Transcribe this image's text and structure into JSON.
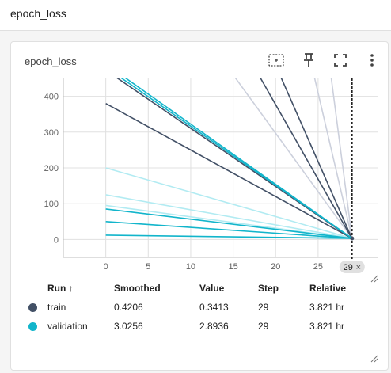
{
  "header": {
    "title": "epoch_loss"
  },
  "card": {
    "title": "epoch_loss"
  },
  "toolbar": {
    "icons": [
      "fit-domain-icon",
      "pin-icon",
      "fullscreen-icon",
      "more-vert-icon"
    ]
  },
  "chart_data": {
    "type": "line",
    "title": "",
    "xlabel": "",
    "ylabel": "",
    "x_ticks": [
      "0",
      "5",
      "10",
      "15",
      "20",
      "25"
    ],
    "y_ticks": [
      "0",
      "100",
      "200",
      "300",
      "400"
    ],
    "xlim": [
      -5,
      32
    ],
    "ylim": [
      -50,
      450
    ],
    "cursor_step": 29,
    "cursor_label": "29",
    "series": [
      {
        "name": "train",
        "color": "#425066",
        "lines": [
          {
            "x": [
              0,
              29
            ],
            "y": [
              380,
              3
            ]
          },
          {
            "x": [
              0.8,
              29
            ],
            "y": [
              460,
              2
            ]
          },
          {
            "x": [
              18,
              29
            ],
            "y": [
              460,
              2
            ]
          },
          {
            "x": [
              20.5,
              29
            ],
            "y": [
              460,
              2
            ]
          }
        ]
      },
      {
        "name": "validation",
        "color": "#12b5cb",
        "lines": [
          {
            "x": [
              0,
              29
            ],
            "y": [
              85,
              3
            ]
          },
          {
            "x": [
              0,
              29
            ],
            "y": [
              50,
              3
            ]
          },
          {
            "x": [
              0,
              29
            ],
            "y": [
              12,
              3
            ]
          },
          {
            "x": [
              1.8,
              29
            ],
            "y": [
              460,
              3
            ]
          },
          {
            "x": [
              1.3,
              29
            ],
            "y": [
              460,
              3
            ]
          }
        ]
      },
      {
        "name": "validation (faded)",
        "color": "#b2ebf2",
        "lines": [
          {
            "x": [
              0,
              29
            ],
            "y": [
              200,
              3
            ]
          },
          {
            "x": [
              0,
              29
            ],
            "y": [
              125,
              3
            ]
          },
          {
            "x": [
              0,
              29
            ],
            "y": [
              95,
              3
            ]
          }
        ]
      },
      {
        "name": "train (faded)",
        "color": "#ccd0dc",
        "lines": [
          {
            "x": [
              15,
              29
            ],
            "y": [
              460,
              3
            ]
          },
          {
            "x": [
              24.5,
              29
            ],
            "y": [
              460,
              3
            ]
          },
          {
            "x": [
              26.5,
              29
            ],
            "y": [
              460,
              3
            ]
          }
        ]
      }
    ]
  },
  "table": {
    "headers": {
      "run": "Run ↑",
      "smoothed": "Smoothed",
      "value": "Value",
      "step": "Step",
      "relative": "Relative"
    },
    "rows": [
      {
        "run": "train",
        "color": "#425066",
        "smoothed": "0.4206",
        "value": "0.3413",
        "step": "29",
        "relative": "3.821 hr"
      },
      {
        "run": "validation",
        "color": "#12b5cb",
        "smoothed": "3.0256",
        "value": "2.8936",
        "step": "29",
        "relative": "3.821 hr"
      }
    ]
  }
}
